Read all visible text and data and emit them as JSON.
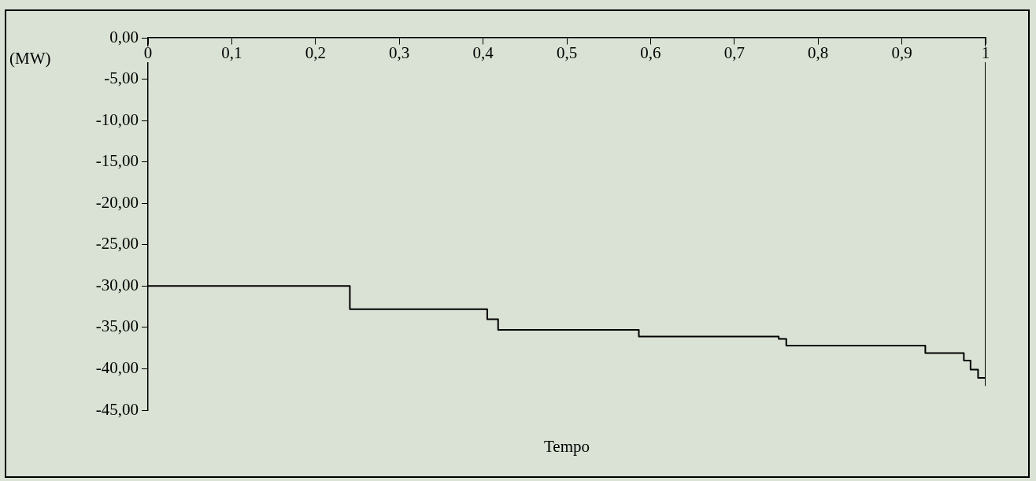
{
  "chart_data": {
    "type": "step",
    "xlabel": "Tempo",
    "ylabel": "(MW)",
    "x": [
      0,
      0.241,
      0.405,
      0.418,
      0.586,
      0.753,
      0.762,
      0.928,
      0.974,
      0.982,
      0.991,
      1,
      1
    ],
    "values": [
      -30,
      -32.8,
      -34,
      -35.3,
      -36.1,
      -36.4,
      -37.2,
      -38.1,
      -39,
      -40.1,
      -41.1,
      -42,
      0
    ],
    "color": "#000000",
    "marker": "none",
    "line_style": "solid",
    "xlim": [
      0,
      1
    ],
    "ylim": [
      -45,
      0
    ],
    "xticks": [
      0,
      {
        "value": 0.1,
        "label": "0,1"
      },
      {
        "value": 0.2,
        "label": "0,2"
      },
      {
        "value": 0.3,
        "label": "0,3"
      },
      {
        "value": 0.4,
        "label": "0,4"
      },
      {
        "value": 0.5,
        "label": "0,5"
      },
      {
        "value": 0.6,
        "label": "0,6"
      },
      {
        "value": 0.7,
        "label": "0,7"
      },
      {
        "value": 0.8,
        "label": "0,8"
      },
      {
        "value": 0.9,
        "label": "0,9"
      },
      1
    ],
    "yticks": [
      {
        "value": 0,
        "label": "0,00"
      },
      {
        "value": -5,
        "label": "-5,00"
      },
      {
        "value": -10,
        "label": "-10,00"
      },
      {
        "value": -15,
        "label": "-15,00"
      },
      {
        "value": -20,
        "label": "-20,00"
      },
      {
        "value": -25,
        "label": "-25,00"
      },
      {
        "value": -30,
        "label": "-30,00"
      },
      {
        "value": -35,
        "label": "-35,00"
      },
      {
        "value": -40,
        "label": "-40,00"
      },
      {
        "value": -45,
        "label": "-45,00"
      }
    ]
  }
}
